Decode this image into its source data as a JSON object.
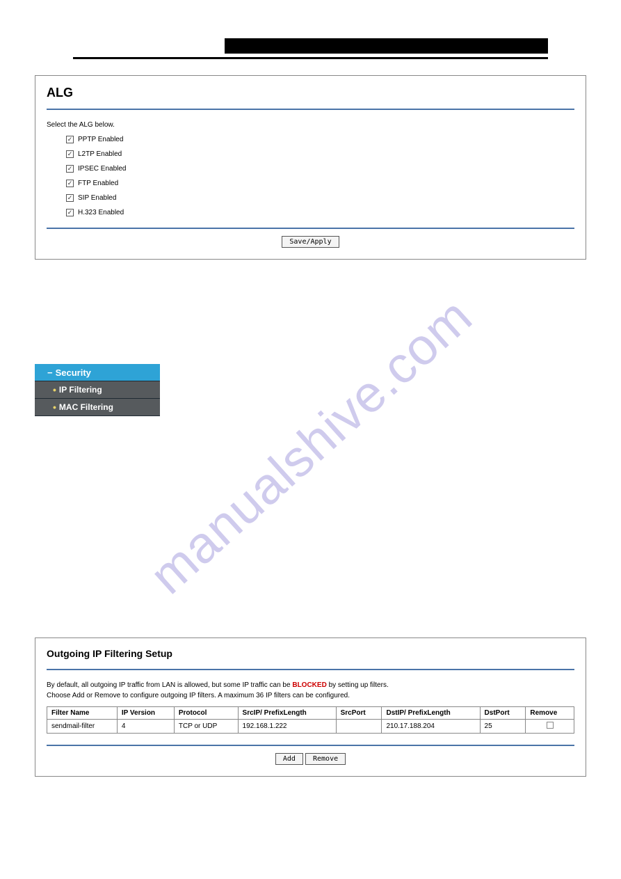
{
  "watermark_text": "manualshive.com",
  "alg_panel": {
    "title": "ALG",
    "select_text": "Select the ALG below.",
    "options": [
      {
        "label": "PPTP Enabled",
        "checked": true
      },
      {
        "label": "L2TP Enabled",
        "checked": true
      },
      {
        "label": "IPSEC Enabled",
        "checked": true
      },
      {
        "label": "FTP Enabled",
        "checked": true
      },
      {
        "label": "SIP Enabled",
        "checked": true
      },
      {
        "label": "H.323 Enabled",
        "checked": true
      }
    ],
    "save_button": "Save/Apply"
  },
  "nav": {
    "header": "Security",
    "items": [
      {
        "label": "IP Filtering"
      },
      {
        "label": "MAC Filtering"
      }
    ]
  },
  "filter_panel": {
    "title": "Outgoing IP Filtering Setup",
    "desc_pre": "By default, all outgoing IP traffic from LAN is allowed, but some IP traffic can be ",
    "desc_blocked": "BLOCKED",
    "desc_post": " by setting up filters.",
    "desc2": "Choose Add or Remove to configure outgoing IP filters. A maximum 36 IP filters can be configured.",
    "columns": {
      "name": "Filter Name",
      "ipver": "IP Version",
      "proto": "Protocol",
      "srcip": "SrcIP/ PrefixLength",
      "srcport": "SrcPort",
      "dstip": "DstIP/ PrefixLength",
      "dstport": "DstPort",
      "remove": "Remove"
    },
    "rows": [
      {
        "name": "sendmail-filter",
        "ipver": "4",
        "proto": "TCP or UDP",
        "srcip": "192.168.1.222",
        "srcport": "",
        "dstip": "210.17.188.204",
        "dstport": "25"
      }
    ],
    "add_button": "Add",
    "remove_button": "Remove"
  }
}
